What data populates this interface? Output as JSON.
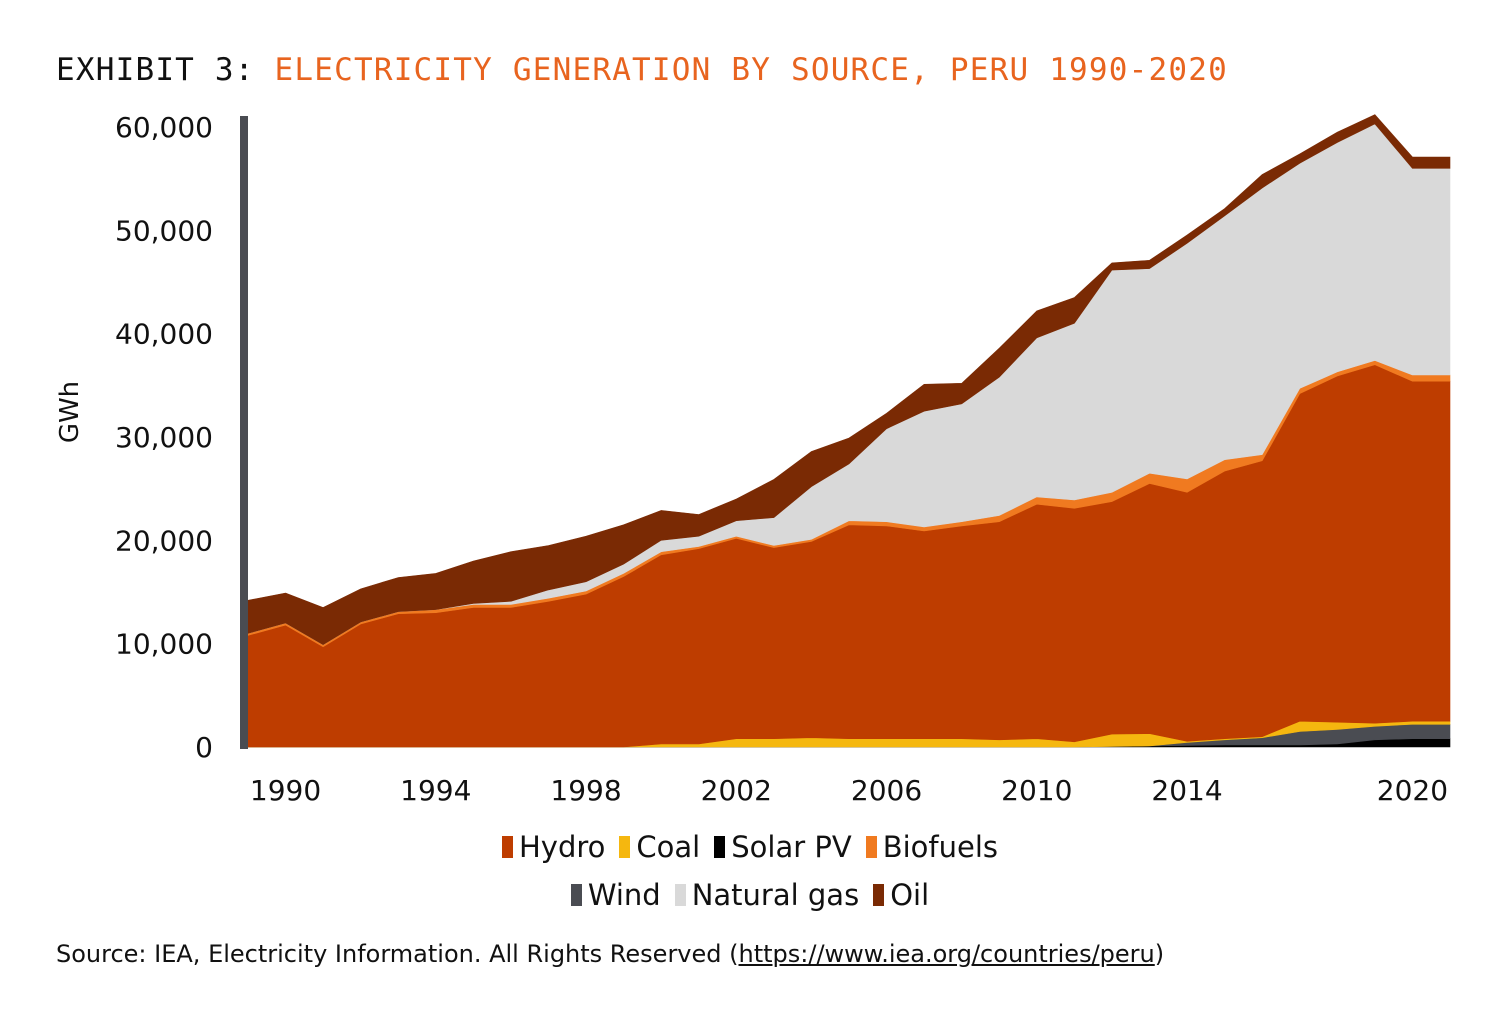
{
  "exhibit_label": "EXHIBIT 3:",
  "colors": {
    "Hydro": "#be3d00",
    "Coal": "#f5b70f",
    "Solar PV": "#000000",
    "Biofuels": "#f07a20",
    "Wind": "#4a4c52",
    "Natural gas": "#d9d9d9",
    "Oil": "#7a2a04",
    "axis": "#4a4c52"
  },
  "source": {
    "prefix": "Source: IEA, Electricity Information. All Rights Reserved (",
    "link": "https://www.iea.org/countries/peru",
    "suffix": ")"
  },
  "chart_data": {
    "type": "area",
    "stacked": true,
    "title": "ELECTRICITY GENERATION BY SOURCE, PERU 1990-2020",
    "xlabel": "",
    "ylabel": "GWh",
    "x": [
      1989,
      1990,
      1991,
      1992,
      1993,
      1994,
      1995,
      1996,
      1997,
      1998,
      1999,
      2000,
      2001,
      2002,
      2003,
      2004,
      2005,
      2006,
      2007,
      2008,
      2009,
      2010,
      2011,
      2012,
      2013,
      2014,
      2015,
      2016,
      2017,
      2018,
      2019,
      2020,
      2021
    ],
    "xlim": [
      1989,
      2021
    ],
    "x_ticks": [
      1990,
      1994,
      1998,
      2002,
      2006,
      2010,
      2014,
      2020
    ],
    "ylim": [
      0,
      60000
    ],
    "y_ticks": [
      0,
      10000,
      20000,
      30000,
      40000,
      50000,
      60000
    ],
    "y_tick_labels": [
      "0",
      "10,000",
      "20,000",
      "30,000",
      "40,000",
      "50,000",
      "60,000"
    ],
    "grid": false,
    "legend_position": "bottom",
    "legend_rows": [
      [
        "Hydro",
        "Coal",
        "Solar PV",
        "Biofuels"
      ],
      [
        "Wind",
        "Natural gas",
        "Oil"
      ]
    ],
    "series": [
      {
        "name": "Solar PV",
        "values": [
          0,
          0,
          0,
          0,
          0,
          0,
          0,
          0,
          0,
          0,
          0,
          0,
          0,
          0,
          0,
          0,
          0,
          0,
          0,
          0,
          0,
          0,
          0,
          50,
          100,
          150,
          200,
          200,
          200,
          300,
          700,
          800,
          800
        ]
      },
      {
        "name": "Wind",
        "values": [
          0,
          0,
          0,
          0,
          0,
          0,
          0,
          0,
          0,
          0,
          0,
          0,
          0,
          0,
          0,
          0,
          0,
          0,
          0,
          0,
          0,
          0,
          0,
          0,
          0,
          300,
          500,
          700,
          1300,
          1400,
          1300,
          1400,
          1400
        ]
      },
      {
        "name": "Coal",
        "values": [
          0,
          0,
          0,
          0,
          0,
          0,
          0,
          0,
          0,
          0,
          0,
          300,
          300,
          800,
          800,
          900,
          800,
          800,
          800,
          800,
          700,
          800,
          500,
          1200,
          1200,
          100,
          100,
          100,
          1000,
          700,
          300,
          300,
          300
        ]
      },
      {
        "name": "Hydro",
        "values": [
          10800,
          11800,
          9700,
          11900,
          12900,
          13000,
          13500,
          13500,
          14100,
          14800,
          16500,
          18300,
          18900,
          19400,
          18500,
          19000,
          20700,
          20600,
          20100,
          20600,
          21100,
          22700,
          22600,
          22500,
          24200,
          24100,
          25900,
          26700,
          31700,
          33500,
          34700,
          32900,
          32900
        ]
      },
      {
        "name": "Biofuels",
        "values": [
          200,
          200,
          200,
          200,
          200,
          300,
          300,
          300,
          300,
          300,
          300,
          300,
          200,
          200,
          200,
          200,
          400,
          400,
          400,
          400,
          600,
          700,
          800,
          900,
          1000,
          1300,
          1100,
          600,
          500,
          400,
          400,
          600,
          600
        ]
      },
      {
        "name": "Natural gas",
        "values": [
          0,
          0,
          0,
          0,
          0,
          0,
          100,
          300,
          800,
          900,
          900,
          1100,
          1000,
          1500,
          2700,
          5100,
          5500,
          9000,
          11200,
          11400,
          13400,
          15400,
          17100,
          21500,
          19800,
          22800,
          23600,
          25800,
          21800,
          22200,
          22900,
          20000,
          20000
        ]
      },
      {
        "name": "Oil",
        "values": [
          3200,
          2900,
          3600,
          3200,
          3300,
          3500,
          4100,
          4800,
          4300,
          4400,
          3800,
          2900,
          2100,
          2100,
          3700,
          3400,
          2500,
          1500,
          2600,
          2000,
          2800,
          2600,
          2500,
          700,
          800,
          800,
          700,
          1300,
          900,
          1000,
          900,
          1100,
          1100
        ]
      }
    ]
  }
}
